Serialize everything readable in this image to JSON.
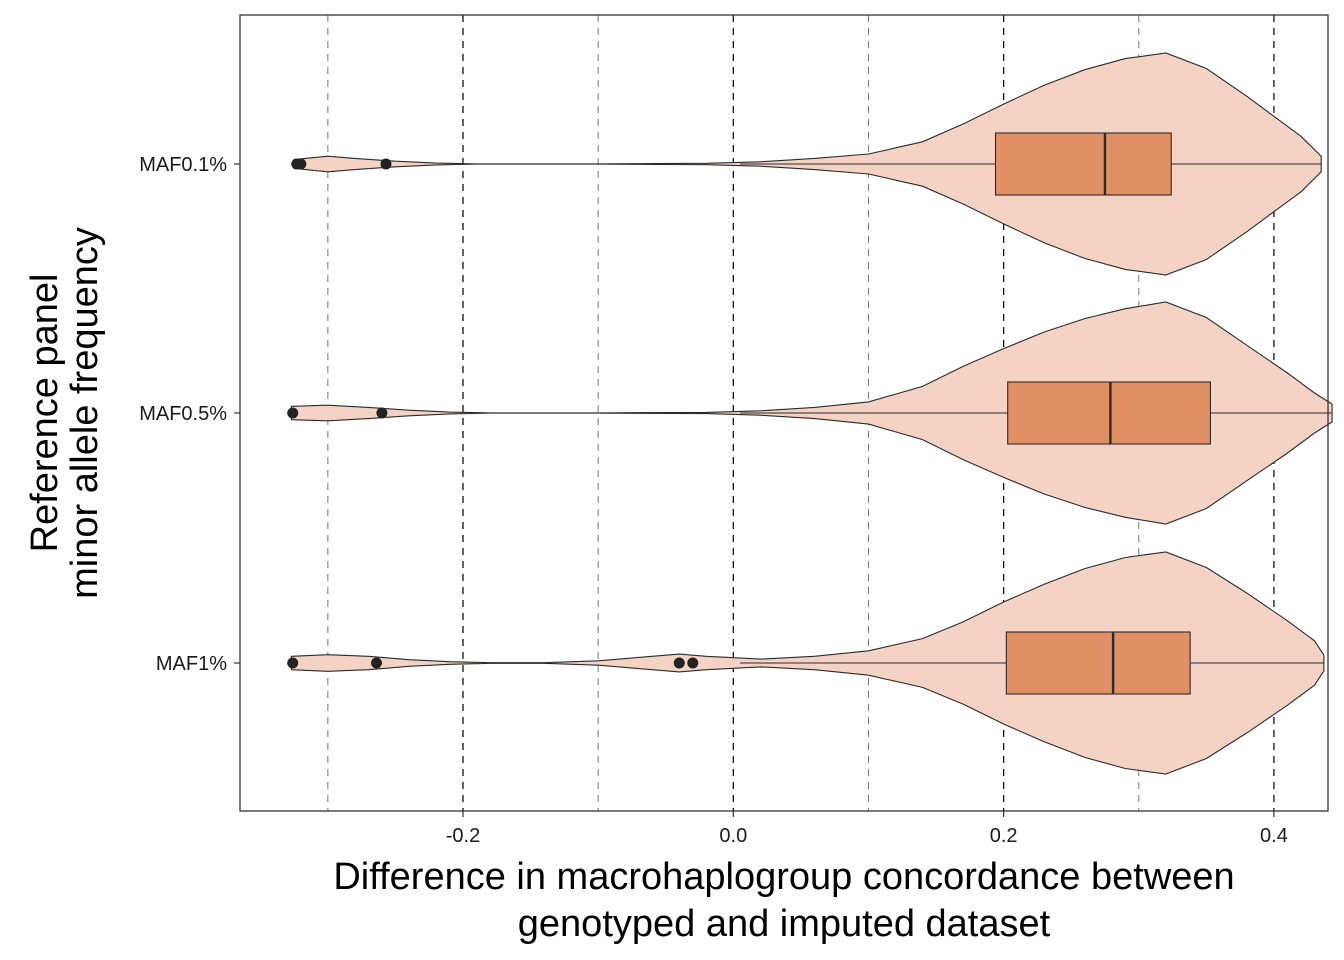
{
  "chart_data": {
    "type": "violin",
    "xlabel": [
      "Difference in macrohaplogroup concordance between",
      "genotyped and imputed dataset"
    ],
    "ylabel": [
      "Reference panel",
      "minor allele frequency"
    ],
    "xlim": [
      -0.365,
      0.44
    ],
    "xticks": [
      -0.2,
      0.0,
      0.2,
      0.4
    ],
    "xtick_labels": [
      "-0.2",
      "0.0",
      "0.2",
      "0.4"
    ],
    "reference_lines": {
      "major": [
        -0.2,
        0.0,
        0.2,
        0.4
      ],
      "minor": [
        -0.3,
        -0.1,
        0.1,
        0.3
      ]
    },
    "grid": false,
    "colors": {
      "violin_fill": "#f4d3c4",
      "box_fill": "#e18f64",
      "outline": "#2b2b2b"
    },
    "categories": [
      "MAF0.1%",
      "MAF0.5%",
      "MAF1%"
    ],
    "groups": [
      {
        "label": "MAF0.1%",
        "box": {
          "whisker_low": 0.005,
          "q1": 0.194,
          "median": 0.275,
          "q3": 0.324,
          "whisker_high": 0.435
        },
        "outliers": [
          -0.323,
          -0.32,
          -0.257
        ],
        "density": [
          [
            -0.325,
            0.04
          ],
          [
            -0.3,
            0.07
          ],
          [
            -0.28,
            0.05
          ],
          [
            -0.25,
            0.025
          ],
          [
            -0.22,
            0.008
          ],
          [
            -0.19,
            0.001
          ],
          [
            -0.1,
            0.001
          ],
          [
            -0.02,
            0.006
          ],
          [
            0.02,
            0.02
          ],
          [
            0.06,
            0.05
          ],
          [
            0.1,
            0.09
          ],
          [
            0.14,
            0.2
          ],
          [
            0.17,
            0.36
          ],
          [
            0.2,
            0.54
          ],
          [
            0.23,
            0.71
          ],
          [
            0.26,
            0.85
          ],
          [
            0.29,
            0.95
          ],
          [
            0.32,
            1.0
          ],
          [
            0.35,
            0.86
          ],
          [
            0.38,
            0.61
          ],
          [
            0.4,
            0.43
          ],
          [
            0.42,
            0.25
          ],
          [
            0.435,
            0.07
          ]
        ]
      },
      {
        "label": "MAF0.5%",
        "box": {
          "whisker_low": 0.005,
          "q1": 0.203,
          "median": 0.279,
          "q3": 0.353,
          "whisker_high": 0.443
        },
        "outliers": [
          -0.326,
          -0.26
        ],
        "density": [
          [
            -0.327,
            0.06
          ],
          [
            -0.3,
            0.07
          ],
          [
            -0.27,
            0.05
          ],
          [
            -0.24,
            0.025
          ],
          [
            -0.21,
            0.008
          ],
          [
            -0.18,
            0.001
          ],
          [
            -0.1,
            0.001
          ],
          [
            -0.02,
            0.005
          ],
          [
            0.02,
            0.02
          ],
          [
            0.06,
            0.05
          ],
          [
            0.1,
            0.1
          ],
          [
            0.14,
            0.24
          ],
          [
            0.17,
            0.42
          ],
          [
            0.2,
            0.58
          ],
          [
            0.23,
            0.73
          ],
          [
            0.26,
            0.85
          ],
          [
            0.29,
            0.94
          ],
          [
            0.32,
            1.0
          ],
          [
            0.35,
            0.86
          ],
          [
            0.38,
            0.61
          ],
          [
            0.41,
            0.36
          ],
          [
            0.43,
            0.18
          ],
          [
            0.443,
            0.08
          ]
        ]
      },
      {
        "label": "MAF1%",
        "box": {
          "whisker_low": 0.005,
          "q1": 0.202,
          "median": 0.281,
          "q3": 0.338,
          "whisker_high": 0.437
        },
        "outliers": [
          -0.326,
          -0.264,
          -0.04,
          -0.03
        ],
        "density": [
          [
            -0.327,
            0.06
          ],
          [
            -0.3,
            0.075
          ],
          [
            -0.27,
            0.06
          ],
          [
            -0.24,
            0.03
          ],
          [
            -0.21,
            0.012
          ],
          [
            -0.18,
            0.003
          ],
          [
            -0.14,
            0.003
          ],
          [
            -0.1,
            0.02
          ],
          [
            -0.06,
            0.06
          ],
          [
            -0.04,
            0.08
          ],
          [
            -0.02,
            0.06
          ],
          [
            0.02,
            0.035
          ],
          [
            0.06,
            0.06
          ],
          [
            0.1,
            0.11
          ],
          [
            0.14,
            0.22
          ],
          [
            0.17,
            0.37
          ],
          [
            0.2,
            0.55
          ],
          [
            0.23,
            0.71
          ],
          [
            0.26,
            0.85
          ],
          [
            0.29,
            0.95
          ],
          [
            0.32,
            1.0
          ],
          [
            0.35,
            0.86
          ],
          [
            0.38,
            0.63
          ],
          [
            0.41,
            0.38
          ],
          [
            0.43,
            0.2
          ],
          [
            0.437,
            0.07
          ]
        ]
      }
    ]
  }
}
